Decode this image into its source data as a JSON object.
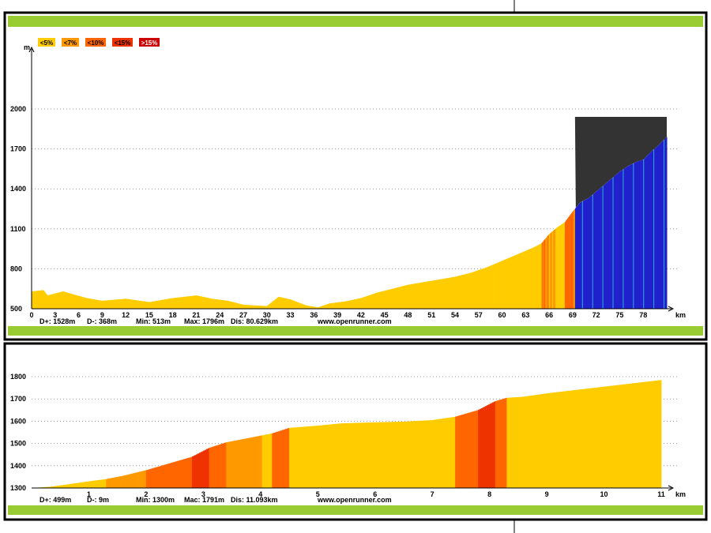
{
  "legend": [
    {
      "label": "<5%",
      "color": "#FFCC00",
      "text_color": "#000000"
    },
    {
      "label": "<7%",
      "color": "#FF9900",
      "text_color": "#000000"
    },
    {
      "label": "<10%",
      "color": "#FF6600",
      "text_color": "#000000"
    },
    {
      "label": "<15%",
      "color": "#EE3300",
      "text_color": "#000000"
    },
    {
      "label": ">15%",
      "color": "#CC0000",
      "text_color": "#FFFFFF"
    }
  ],
  "colors": {
    "frame_border": "#000000",
    "green_bar": "#99CC33",
    "grid": "#999999",
    "blue_area": "#2020CC",
    "blue_light": "#33AADD",
    "dark_overlay": "#333333"
  },
  "chart_data": [
    {
      "type": "area",
      "ylabel": "m",
      "xlabel": "km",
      "ylim": [
        500,
        2000
      ],
      "xlim": [
        0,
        81
      ],
      "yticks": [
        500,
        800,
        1100,
        1400,
        1700,
        2000
      ],
      "xticks": [
        0,
        3,
        6,
        9,
        12,
        15,
        18,
        21,
        24,
        27,
        30,
        33,
        36,
        39,
        42,
        45,
        48,
        51,
        54,
        57,
        60,
        63,
        66,
        69,
        72,
        75,
        78
      ],
      "grid": true,
      "legend_position": "top-left",
      "x": [
        0,
        1.5,
        2,
        4,
        7,
        9,
        12,
        15,
        18,
        21,
        23,
        25,
        27,
        30,
        31.5,
        33,
        35,
        36.5,
        38,
        40,
        42,
        44,
        46,
        48,
        50,
        52,
        54,
        56,
        58,
        60,
        62,
        64,
        65,
        66,
        67,
        68,
        69,
        70,
        71,
        72,
        73,
        74,
        75,
        76,
        77,
        78,
        79,
        80,
        81
      ],
      "y": [
        630,
        640,
        600,
        630,
        580,
        560,
        575,
        550,
        580,
        600,
        575,
        560,
        530,
        520,
        590,
        570,
        525,
        510,
        540,
        555,
        580,
        620,
        650,
        680,
        700,
        720,
        740,
        770,
        810,
        860,
        910,
        960,
        990,
        1060,
        1110,
        1150,
        1230,
        1300,
        1330,
        1380,
        1430,
        1480,
        1530,
        1570,
        1600,
        1620,
        1680,
        1730,
        1790
      ],
      "segments": [
        {
          "from": 0,
          "to": 69.3,
          "type": "gradient-colored"
        },
        {
          "from": 69.3,
          "to": 81,
          "type": "selected-range"
        }
      ],
      "stats": {
        "d_plus": "D+: 1528m",
        "d_minus": "D-: 368m",
        "min": "Min: 513m",
        "max": "Max: 1796m",
        "dist": "Dis: 80.629km",
        "site": "www.openrunner.com"
      }
    },
    {
      "type": "area",
      "xlabel": "km",
      "ylim": [
        1300,
        1800
      ],
      "xlim": [
        0,
        11
      ],
      "yticks": [
        1300,
        1400,
        1500,
        1600,
        1700,
        1800
      ],
      "xticks": [
        1,
        2,
        3,
        4,
        5,
        6,
        7,
        8,
        9,
        10,
        11
      ],
      "grid": true,
      "x": [
        0,
        0.3,
        0.6,
        1,
        1.3,
        1.6,
        2,
        2.4,
        2.8,
        3.1,
        3.4,
        3.8,
        4.2,
        4.5,
        5,
        5.4,
        6,
        6.5,
        7,
        7.4,
        7.8,
        8.1,
        8.3,
        8.6,
        9,
        9.5,
        10,
        10.5,
        11
      ],
      "y": [
        1300,
        1305,
        1315,
        1330,
        1340,
        1355,
        1380,
        1410,
        1440,
        1480,
        1505,
        1525,
        1545,
        1570,
        1580,
        1590,
        1595,
        1598,
        1605,
        1620,
        1650,
        1690,
        1705,
        1710,
        1725,
        1740,
        1755,
        1770,
        1785
      ],
      "stats": {
        "d_plus": "D+: 499m",
        "d_minus": "D-: 9m",
        "min": "Min: 1300m",
        "max": "Mac: 1791m",
        "dist": "Dis: 11.093km",
        "site": "www.openrunner.com"
      }
    }
  ]
}
